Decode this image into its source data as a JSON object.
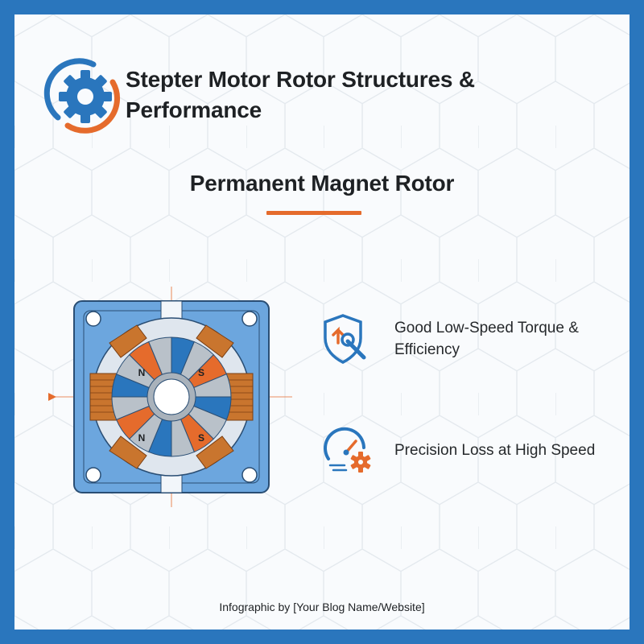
{
  "title": "Stepter Motor Rotor Structures & Performance",
  "subtitle": "Permanent Magnet Rotor",
  "rotor_pole_labels": [
    "N",
    "S",
    "N",
    "S"
  ],
  "features": [
    {
      "icon": "shield-wrench-icon",
      "text": "Good Low-Speed Torque & Efficiency"
    },
    {
      "icon": "speedometer-gear-icon",
      "text": "Precision Loss at High Speed"
    }
  ],
  "footer": "Infographic by [Your Blog Name/Website]",
  "colors": {
    "border": "#2a76bd",
    "accent_orange": "#e56b2c",
    "stator_blue": "#6ca6de",
    "copper": "#c9752e",
    "text": "#1e2124"
  }
}
